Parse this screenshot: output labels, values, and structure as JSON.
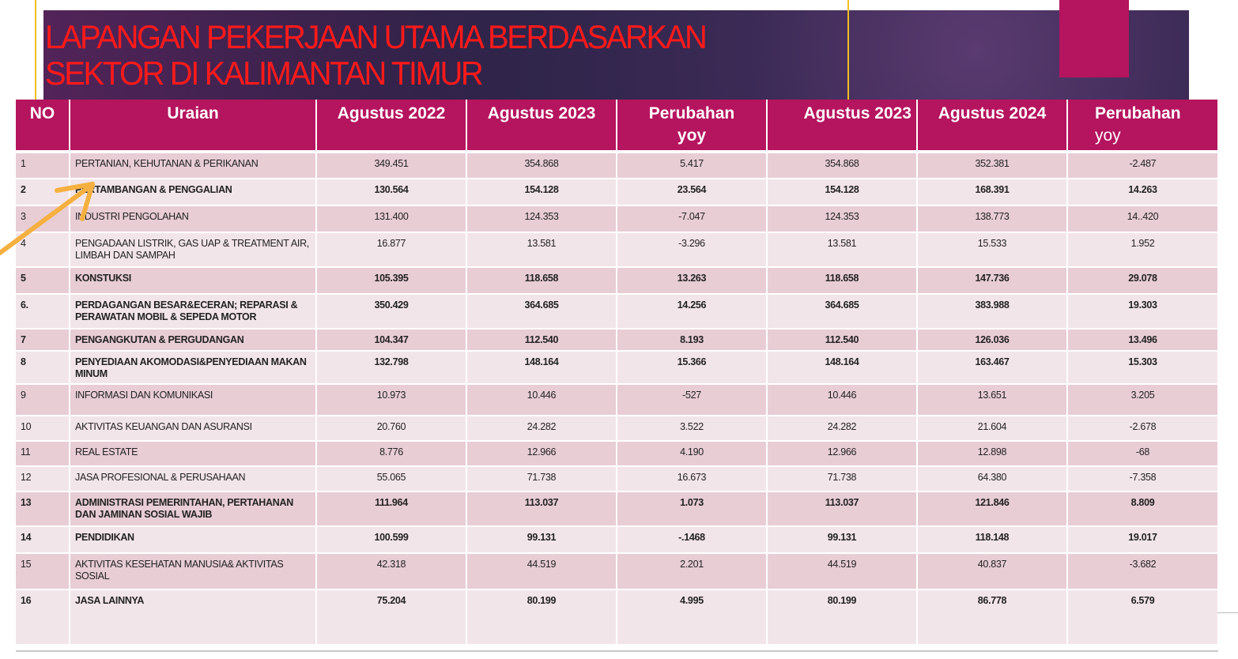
{
  "title_line1": "LAPANGAN PEKERJAAN UTAMA BERDASARKAN",
  "title_line2": "SEKTOR DI KALIMANTAN TIMUR",
  "colors": {
    "header_bg": "#b5145e",
    "title": "#ff1a1a",
    "negative": "#e0141e",
    "row_dark": "#e8cdd5",
    "row_light": "#f2e5e9"
  },
  "headers": {
    "no": "NO",
    "uraian": "Uraian",
    "aug2022": "Agustus 2022",
    "aug2023a": "Agustus 2023",
    "perubahan1": "Perubahan",
    "perubahan1_sub": "yoy",
    "aug2023b": "Agustus 2023",
    "aug2024": "Agustus 2024",
    "perubahan2": "Perubahan",
    "perubahan2_sub": "yoy"
  },
  "rows": [
    {
      "no": "1",
      "uraian": "PERTANIAN, KEHUTANAN & PERIKANAN",
      "a2022": "349.451",
      "a2023": "354.868",
      "yoy1": "5.417",
      "b2023": "354.868",
      "a2024": "352.381",
      "yoy2": "-2.487"
    },
    {
      "no": "2",
      "uraian": "PERTAMBANGAN & PENGGALIAN",
      "a2022": "130.564",
      "a2023": "154.128",
      "yoy1": "23.564",
      "b2023": "154.128",
      "a2024": "168.391",
      "yoy2": "14.263"
    },
    {
      "no": "3",
      "uraian": "INDUSTRI PENGOLAHAN",
      "a2022": "131.400",
      "a2023": "124.353",
      "yoy1": "-7.047",
      "b2023": "124.353",
      "a2024": "138.773",
      "yoy2": "14..420"
    },
    {
      "no": "4",
      "uraian": "PENGADAAN LISTRIK, GAS UAP & TREATMENT AIR, LIMBAH DAN SAMPAH",
      "a2022": "16.877",
      "a2023": "13.581",
      "yoy1": "-3.296",
      "b2023": "13.581",
      "a2024": "15.533",
      "yoy2": "1.952"
    },
    {
      "no": "5",
      "uraian": "KONSTUKSI",
      "a2022": "105.395",
      "a2023": "118.658",
      "yoy1": "13.263",
      "b2023": "118.658",
      "a2024": "147.736",
      "yoy2": "29.078"
    },
    {
      "no": "6.",
      "uraian": "PERDAGANGAN BESAR&ECERAN; REPARASI & PERAWATAN MOBIL & SEPEDA MOTOR",
      "a2022": "350.429",
      "a2023": "364.685",
      "yoy1": "14.256",
      "b2023": "364.685",
      "a2024": "383.988",
      "yoy2": "19.303"
    },
    {
      "no": "7",
      "uraian": "PENGANGKUTAN & PERGUDANGAN",
      "a2022": "104.347",
      "a2023": "112.540",
      "yoy1": "8.193",
      "b2023": "112.540",
      "a2024": "126.036",
      "yoy2": "13.496"
    },
    {
      "no": "8",
      "uraian": "PENYEDIAAN AKOMODASI&PENYEDIAAN MAKAN MINUM",
      "a2022": "132.798",
      "a2023": "148.164",
      "yoy1": "15.366",
      "b2023": "148.164",
      "a2024": "163.467",
      "yoy2": "15.303"
    },
    {
      "no": "9",
      "uraian": "INFORMASI DAN KOMUNIKASI",
      "a2022": "10.973",
      "a2023": "10.446",
      "yoy1": "-527",
      "b2023": "10.446",
      "a2024": "13.651",
      "yoy2": "3.205"
    },
    {
      "no": "10",
      "uraian": "AKTIVITAS KEUANGAN DAN ASURANSI",
      "a2022": "20.760",
      "a2023": "24.282",
      "yoy1": "3.522",
      "b2023": "24.282",
      "a2024": "21.604",
      "yoy2": "-2.678"
    },
    {
      "no": "11",
      "uraian": "REAL ESTATE",
      "a2022": "8.776",
      "a2023": "12.966",
      "yoy1": "4.190",
      "b2023": "12.966",
      "a2024": "12.898",
      "yoy2": "-68"
    },
    {
      "no": "12",
      "uraian": "JASA PROFESIONAL & PERUSAHAAN",
      "a2022": "55.065",
      "a2023": "71.738",
      "yoy1": "16.673",
      "b2023": "71.738",
      "a2024": "64.380",
      "yoy2": "-7.358"
    },
    {
      "no": "13",
      "uraian": "ADMINISTRASI PEMERINTAHAN, PERTAHANAN DAN JAMINAN SOSIAL WAJIB",
      "a2022": "111.964",
      "a2023": "113.037",
      "yoy1": "1.073",
      "b2023": "113.037",
      "a2024": "121.846",
      "yoy2": "8.809"
    },
    {
      "no": "14",
      "uraian": "PENDIDIKAN",
      "a2022": "100.599",
      "a2023": "99.131",
      "yoy1": "-.1468",
      "b2023": "99.131",
      "a2024": "118.148",
      "yoy2": "19.017"
    },
    {
      "no": "15",
      "uraian": "AKTIVITAS KESEHATAN MANUSIA& AKTIVITAS SOSIAL",
      "a2022": "42.318",
      "a2023": "44.519",
      "yoy1": "2.201",
      "b2023": "44.519",
      "a2024": "40.837",
      "yoy2": "-3.682"
    },
    {
      "no": "16",
      "uraian": "JASA LAINNYA",
      "a2022": "75.204",
      "a2023": "80.199",
      "yoy1": "4.995",
      "b2023": "80.199",
      "a2024": "86.778",
      "yoy2": "6.579"
    }
  ]
}
